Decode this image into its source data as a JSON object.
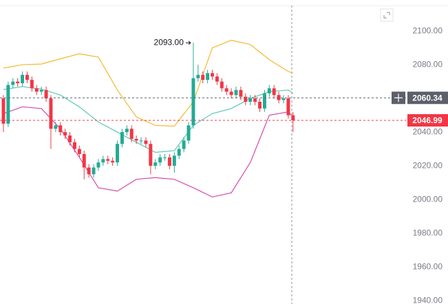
{
  "chart_data": {
    "type": "candlestick",
    "xlim": [
      -0.72,
      84.8
    ],
    "ylim": [
      1938,
      2118.4
    ],
    "yticks": [
      {
        "value": 2100,
        "label": "2100.00"
      },
      {
        "value": 2080,
        "label": "2080.00"
      },
      {
        "value": 2060,
        "label": "2060.00"
      },
      {
        "value": 2040,
        "label": "2040.00"
      },
      {
        "value": 2020,
        "label": "2020.00"
      },
      {
        "value": 2000,
        "label": "2000.00"
      },
      {
        "value": 1980,
        "label": "1980.00"
      },
      {
        "value": 1960,
        "label": "1960.00"
      },
      {
        "value": 1940,
        "label": "1940.00"
      }
    ],
    "up_color": "#22ab94",
    "down_color": "#f23645",
    "candles": {
      "open": [
        2060,
        2045,
        2068,
        2070,
        2069,
        2074,
        2071,
        2066,
        2064,
        2065,
        2060,
        2042,
        2044,
        2040,
        2038,
        2034,
        2030,
        2027,
        2019,
        2015,
        2019,
        2022,
        2024,
        2023,
        2022,
        2033,
        2040,
        2042,
        2036,
        2035,
        2035,
        2033,
        2020,
        2022,
        2025,
        2025,
        2020,
        2026,
        2030,
        2035,
        2044,
        2072,
        2074,
        2071,
        2075,
        2073,
        2070,
        2066,
        2064,
        2062,
        2065,
        2061,
        2058,
        2060,
        2058,
        2054,
        2063,
        2066,
        2062,
        2059,
        2060,
        2050
      ],
      "high": [
        2062,
        2070,
        2072,
        2072,
        2076,
        2076,
        2073,
        2068,
        2067,
        2067,
        2062,
        2046,
        2046,
        2042,
        2040,
        2036,
        2032,
        2029,
        2021,
        2021,
        2024,
        2026,
        2026,
        2025,
        2035,
        2042,
        2044,
        2044,
        2038,
        2037,
        2037,
        2035,
        2024,
        2027,
        2027,
        2027,
        2028,
        2032,
        2037,
        2046,
        2093,
        2080,
        2076,
        2077,
        2077,
        2075,
        2072,
        2068,
        2066,
        2067,
        2067,
        2063,
        2062,
        2062,
        2060,
        2065,
        2068,
        2068,
        2064,
        2062,
        2062,
        2052
      ],
      "low": [
        2040,
        2043,
        2066,
        2067,
        2067,
        2069,
        2064,
        2062,
        2062,
        2058,
        2030,
        2040,
        2038,
        2036,
        2032,
        2028,
        2025,
        2012,
        2013,
        2013,
        2017,
        2020,
        2021,
        2020,
        2020,
        2031,
        2038,
        2034,
        2033,
        2033,
        2031,
        2015,
        2018,
        2020,
        2023,
        2018,
        2016,
        2024,
        2028,
        2033,
        2042,
        2070,
        2069,
        2069,
        2071,
        2068,
        2064,
        2062,
        2060,
        2060,
        2059,
        2056,
        2056,
        2056,
        2052,
        2052,
        2061,
        2060,
        2057,
        2057,
        2048,
        2040
      ],
      "close": [
        2045,
        2068,
        2070,
        2069,
        2074,
        2071,
        2066,
        2064,
        2065,
        2060,
        2042,
        2044,
        2040,
        2038,
        2034,
        2030,
        2027,
        2019,
        2015,
        2019,
        2022,
        2024,
        2023,
        2022,
        2033,
        2040,
        2042,
        2036,
        2035,
        2035,
        2033,
        2020,
        2022,
        2025,
        2025,
        2020,
        2026,
        2030,
        2035,
        2044,
        2072,
        2074,
        2071,
        2075,
        2073,
        2070,
        2066,
        2064,
        2062,
        2065,
        2061,
        2058,
        2060,
        2058,
        2054,
        2063,
        2066,
        2062,
        2059,
        2060,
        2050,
        2046.99
      ]
    },
    "bands": [
      {
        "color": "#f5b82e",
        "x": [
          0,
          4,
          8,
          12,
          16,
          20,
          24,
          28,
          32,
          36,
          40,
          44,
          48,
          52,
          56,
          60,
          61
        ],
        "values": [
          2078,
          2080,
          2080.4,
          2083.5,
          2086.5,
          2084.5,
          2065,
          2049,
          2044,
          2043.5,
          2058,
          2090,
          2094.5,
          2092,
          2083,
          2076,
          2075
        ]
      },
      {
        "color": "#5bc8b4",
        "x": [
          0,
          4,
          8,
          12,
          16,
          20,
          24,
          28,
          32,
          36,
          40,
          44,
          48,
          52,
          56,
          60,
          61
        ],
        "values": [
          2065.3,
          2067,
          2065.5,
          2062,
          2055,
          2046,
          2040,
          2034,
          2028,
          2029,
          2044,
          2051,
          2054,
          2060,
          2064,
          2065,
          2063
        ]
      },
      {
        "color": "#d54aa8",
        "x": [
          0,
          4,
          8,
          12,
          16,
          20,
          24,
          28,
          32,
          36,
          40,
          44,
          48,
          52,
          56,
          60,
          61
        ],
        "values": [
          2051,
          2055,
          2054,
          2042,
          2025,
          2007,
          2005,
          2012,
          2013,
          2012,
          2007,
          2001.5,
          2004,
          2022,
          2050,
          2052,
          2049
        ]
      }
    ],
    "high_annotation": {
      "value": 2093,
      "label": "2093.00"
    },
    "price_lines": [
      {
        "value": 2060.34,
        "color": "#5d606b"
      },
      {
        "value": 2046.99,
        "color": "#f23645"
      }
    ]
  }
}
